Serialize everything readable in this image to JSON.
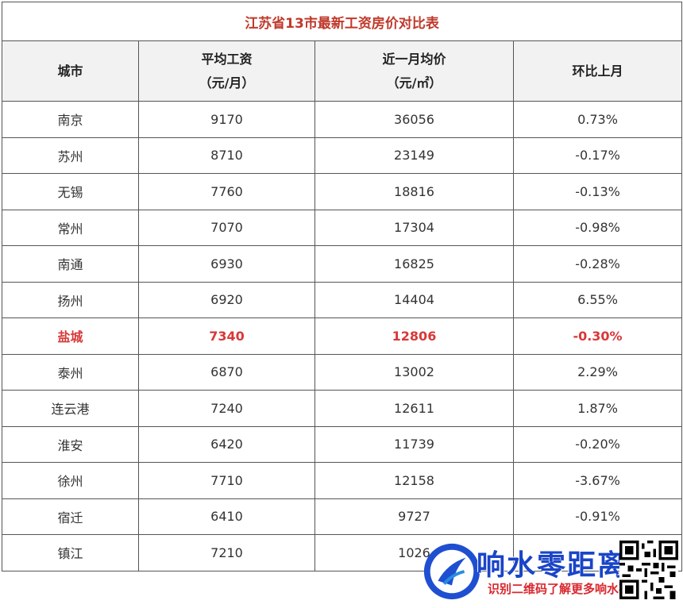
{
  "table": {
    "title": "江苏省13市最新工资房价对比表",
    "headers": [
      {
        "line1": "城市",
        "line2": ""
      },
      {
        "line1": "平均工资",
        "line2": "（元/月）"
      },
      {
        "line1": "近一月均价",
        "line2": "（元/㎡）"
      },
      {
        "line1": "环比上月",
        "line2": ""
      }
    ],
    "rows": [
      {
        "city": "南京",
        "salary": "9170",
        "price": "36056",
        "mom": "0.73%"
      },
      {
        "city": "苏州",
        "salary": "8710",
        "price": "23149",
        "mom": "-0.17%"
      },
      {
        "city": "无锡",
        "salary": "7760",
        "price": "18816",
        "mom": "-0.13%"
      },
      {
        "city": "常州",
        "salary": "7070",
        "price": "17304",
        "mom": "-0.98%"
      },
      {
        "city": "南通",
        "salary": "6930",
        "price": "16825",
        "mom": "-0.28%"
      },
      {
        "city": "扬州",
        "salary": "6920",
        "price": "14404",
        "mom": "6.55%"
      },
      {
        "city": "盐城",
        "salary": "7340",
        "price": "12806",
        "mom": "-0.30%"
      },
      {
        "city": "泰州",
        "salary": "6870",
        "price": "13002",
        "mom": "2.29%"
      },
      {
        "city": "连云港",
        "salary": "7240",
        "price": "12611",
        "mom": "1.87%"
      },
      {
        "city": "淮安",
        "salary": "6420",
        "price": "11739",
        "mom": "-0.20%"
      },
      {
        "city": "徐州",
        "salary": "7710",
        "price": "12158",
        "mom": "-3.67%"
      },
      {
        "city": "宿迁",
        "salary": "6410",
        "price": "9727",
        "mom": "-0.91%"
      },
      {
        "city": "镇江",
        "salary": "7210",
        "price": "1026",
        "mom": ""
      }
    ],
    "highlight_color": "#d93838",
    "title_color": "#c0392b"
  },
  "watermark": {
    "name": "响水零距离",
    "subtitle": "识别二维码了解更多响水事",
    "name_color": "#1a45c8",
    "subtitle_color": "#d9282f"
  }
}
